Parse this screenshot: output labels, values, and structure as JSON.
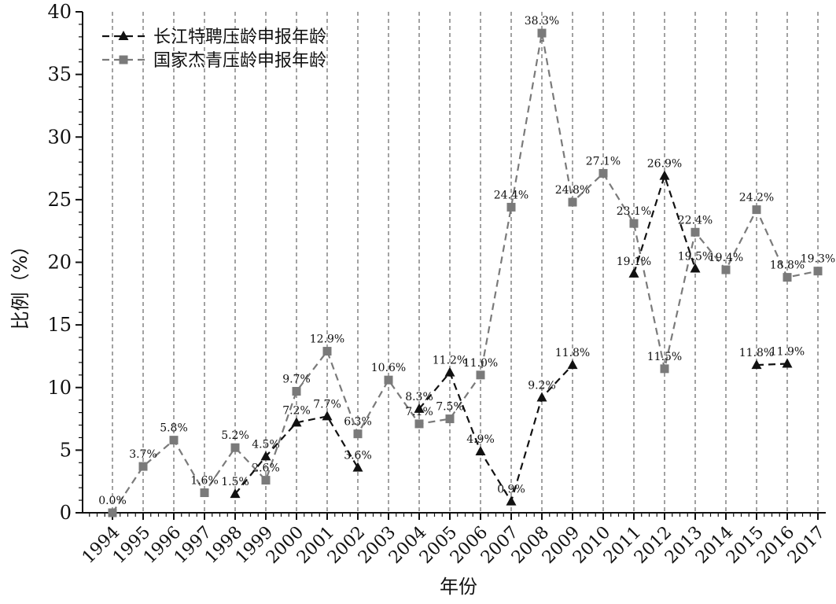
{
  "chart_data": {
    "type": "line",
    "xlabel": "年份",
    "ylabel": "比例（%）",
    "ylim": [
      0,
      40
    ],
    "yticks": [
      0,
      5,
      10,
      15,
      20,
      25,
      30,
      35,
      40
    ],
    "grid": "vertical dashed lines at each year",
    "legend_position": "top-left",
    "categories": [
      "1994",
      "1995",
      "1996",
      "1997",
      "1998",
      "1999",
      "2000",
      "2001",
      "2002",
      "2003",
      "2004",
      "2005",
      "2006",
      "2007",
      "2008",
      "2009",
      "2010",
      "2011",
      "2012",
      "2013",
      "2014",
      "2015",
      "2016",
      "2017"
    ],
    "series": [
      {
        "name": "长江特聘压龄申报年龄",
        "marker": "triangle",
        "color": "#111111",
        "values": [
          null,
          null,
          null,
          null,
          1.5,
          4.5,
          7.2,
          7.7,
          3.6,
          null,
          8.3,
          11.2,
          4.9,
          0.9,
          9.2,
          11.8,
          null,
          19.1,
          26.9,
          19.5,
          null,
          11.8,
          11.9,
          null
        ],
        "labels": [
          "",
          "",
          "",
          "",
          "1.5%",
          "4.5%",
          "7.2%",
          "7.7%",
          "3.6%",
          "",
          "8.3%",
          "11.2%",
          "4.9%",
          "0.9%",
          "9.2%",
          "11.8%",
          "",
          "19.1%",
          "26.9%",
          "19.5%",
          "",
          "11.8%",
          "11.9%",
          ""
        ]
      },
      {
        "name": "国家杰青压龄申报年龄",
        "marker": "square",
        "color": "#7a7a7a",
        "values": [
          0.0,
          3.7,
          5.8,
          1.6,
          5.2,
          2.6,
          9.7,
          12.9,
          6.3,
          10.6,
          7.1,
          7.5,
          11.0,
          24.4,
          38.3,
          24.8,
          27.1,
          23.1,
          11.5,
          22.4,
          19.4,
          24.2,
          18.8,
          19.3
        ],
        "labels": [
          "0.0%",
          "3.7%",
          "5.8%",
          "1.6%",
          "5.2%",
          "2.6%",
          "9.7%",
          "12.9%",
          "6.3%",
          "10.6%",
          "7.1%",
          "7.5%",
          "11.0%",
          "24.4%",
          "38.3%",
          "24.8%",
          "27.1%",
          "23.1%",
          "11.5%",
          "22.4%",
          "19.4%",
          "24.2%",
          "18.8%",
          "19.3%"
        ]
      }
    ]
  }
}
